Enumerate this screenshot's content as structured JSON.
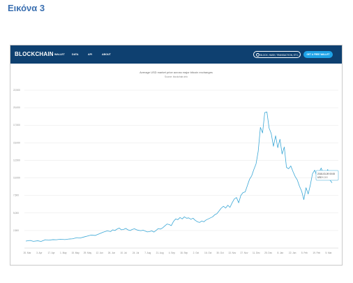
{
  "document": {
    "caption": "Εικόνα 3"
  },
  "navbar": {
    "logo": "BLOCKCHAIN",
    "items": [
      "WALLET",
      "DATA",
      "API",
      "ABOUT"
    ],
    "search_placeholder": "BLOCK, HASH, TRANSACTION, ETC...",
    "cta_label": "GET A FREE WALLET"
  },
  "chart": {
    "title": "Average USD market price across major bitcoin exchanges",
    "source": "Source: blockchain.info"
  },
  "tooltip": {
    "date": "2018-03-09 00:00",
    "label": "USD",
    "value": "9,300"
  },
  "colors": {
    "navbar": "#0e4070",
    "accent": "#1fa3e8",
    "line": "#3aa7d6"
  },
  "chart_data": {
    "type": "line",
    "title": "Average USD market price across major bitcoin exchanges",
    "ylim": [
      0,
      22500
    ],
    "yticks": [
      2500,
      5000,
      7500,
      10000,
      12500,
      15000,
      17500,
      20000,
      22500
    ],
    "ytick_labels": [
      "2,500",
      "5,000",
      "7,500",
      "10,000",
      "12,500",
      "15,000",
      "17,500",
      "20,000",
      "22,500"
    ],
    "xlabels": [
      "20. Mar",
      "3. Apr",
      "17. Apr",
      "1. May",
      "15. May",
      "29. May",
      "12. Jun",
      "26. Jun",
      "10. Jul",
      "24. Jul",
      "7. Aug",
      "21. Aug",
      "4. Sep",
      "18. Sep",
      "2. Oct",
      "16. Oct",
      "30. Oct",
      "13. Nov",
      "27. Nov",
      "11. Dec",
      "25. Dec",
      "8. Jan",
      "22. Jan",
      "5. Feb",
      "19. Feb",
      "5. Mar"
    ],
    "grid": true,
    "series": [
      {
        "points": [
          [
            0,
            1000
          ],
          [
            4,
            1080
          ],
          [
            7,
            960
          ],
          [
            11,
            1040
          ],
          [
            14,
            950
          ],
          [
            18,
            1180
          ],
          [
            21,
            1120
          ],
          [
            25,
            1200
          ],
          [
            28,
            1180
          ],
          [
            32,
            1260
          ],
          [
            36,
            1210
          ],
          [
            40,
            1290
          ],
          [
            43,
            1320
          ],
          [
            47,
            1480
          ],
          [
            50,
            1430
          ],
          [
            54,
            1600
          ],
          [
            57,
            1720
          ],
          [
            60,
            1850
          ],
          [
            64,
            1800
          ],
          [
            68,
            2050
          ],
          [
            71,
            2250
          ],
          [
            75,
            2450
          ],
          [
            78,
            2350
          ],
          [
            80,
            2600
          ],
          [
            82,
            2500
          ],
          [
            84,
            2700
          ],
          [
            86,
            2850
          ],
          [
            88,
            2600
          ],
          [
            90,
            2650
          ],
          [
            92,
            2800
          ],
          [
            94,
            2600
          ],
          [
            96,
            2500
          ],
          [
            98,
            2650
          ],
          [
            100,
            2750
          ],
          [
            102,
            2600
          ],
          [
            104,
            2520
          ],
          [
            106,
            2480
          ],
          [
            108,
            2550
          ],
          [
            110,
            2420
          ],
          [
            112,
            2300
          ],
          [
            114,
            2350
          ],
          [
            116,
            2450
          ],
          [
            118,
            2280
          ],
          [
            120,
            2520
          ],
          [
            122,
            2780
          ],
          [
            124,
            2700
          ],
          [
            126,
            2880
          ],
          [
            128,
            3150
          ],
          [
            130,
            3420
          ],
          [
            132,
            3350
          ],
          [
            134,
            3200
          ],
          [
            136,
            3800
          ],
          [
            138,
            4150
          ],
          [
            140,
            4050
          ],
          [
            142,
            4350
          ],
          [
            144,
            4150
          ],
          [
            146,
            4450
          ],
          [
            148,
            4250
          ],
          [
            150,
            4300
          ],
          [
            152,
            4100
          ],
          [
            154,
            4250
          ],
          [
            156,
            3950
          ],
          [
            158,
            3750
          ],
          [
            160,
            3650
          ],
          [
            162,
            3850
          ],
          [
            164,
            3750
          ],
          [
            166,
            4000
          ],
          [
            168,
            4150
          ],
          [
            170,
            4300
          ],
          [
            172,
            4450
          ],
          [
            174,
            4750
          ],
          [
            176,
            4900
          ],
          [
            178,
            5300
          ],
          [
            180,
            5700
          ],
          [
            182,
            5950
          ],
          [
            184,
            5700
          ],
          [
            186,
            6100
          ],
          [
            188,
            5800
          ],
          [
            190,
            6450
          ],
          [
            192,
            7000
          ],
          [
            194,
            7200
          ],
          [
            196,
            6450
          ],
          [
            198,
            7500
          ],
          [
            200,
            7900
          ],
          [
            202,
            8000
          ],
          [
            204,
            8900
          ],
          [
            206,
            9800
          ],
          [
            208,
            10300
          ],
          [
            210,
            11200
          ],
          [
            212,
            12000
          ],
          [
            214,
            13800
          ],
          [
            216,
            17200
          ],
          [
            218,
            16400
          ],
          [
            220,
            19300
          ],
          [
            222,
            19400
          ],
          [
            224,
            17100
          ],
          [
            226,
            16300
          ],
          [
            228,
            14500
          ],
          [
            230,
            16000
          ],
          [
            232,
            14300
          ],
          [
            234,
            15500
          ],
          [
            236,
            13400
          ],
          [
            238,
            14400
          ],
          [
            240,
            11500
          ],
          [
            242,
            11300
          ],
          [
            244,
            11700
          ],
          [
            246,
            10900
          ],
          [
            248,
            10200
          ],
          [
            250,
            9700
          ],
          [
            252,
            8800
          ],
          [
            254,
            8100
          ],
          [
            256,
            6900
          ],
          [
            258,
            8600
          ],
          [
            260,
            7700
          ],
          [
            262,
            9000
          ],
          [
            264,
            10600
          ],
          [
            266,
            11100
          ],
          [
            268,
            10200
          ],
          [
            270,
            10800
          ],
          [
            272,
            11400
          ],
          [
            274,
            10500
          ],
          [
            276,
            10400
          ],
          [
            278,
            11200
          ],
          [
            280,
            9700
          ],
          [
            282,
            9300
          ]
        ]
      }
    ]
  }
}
